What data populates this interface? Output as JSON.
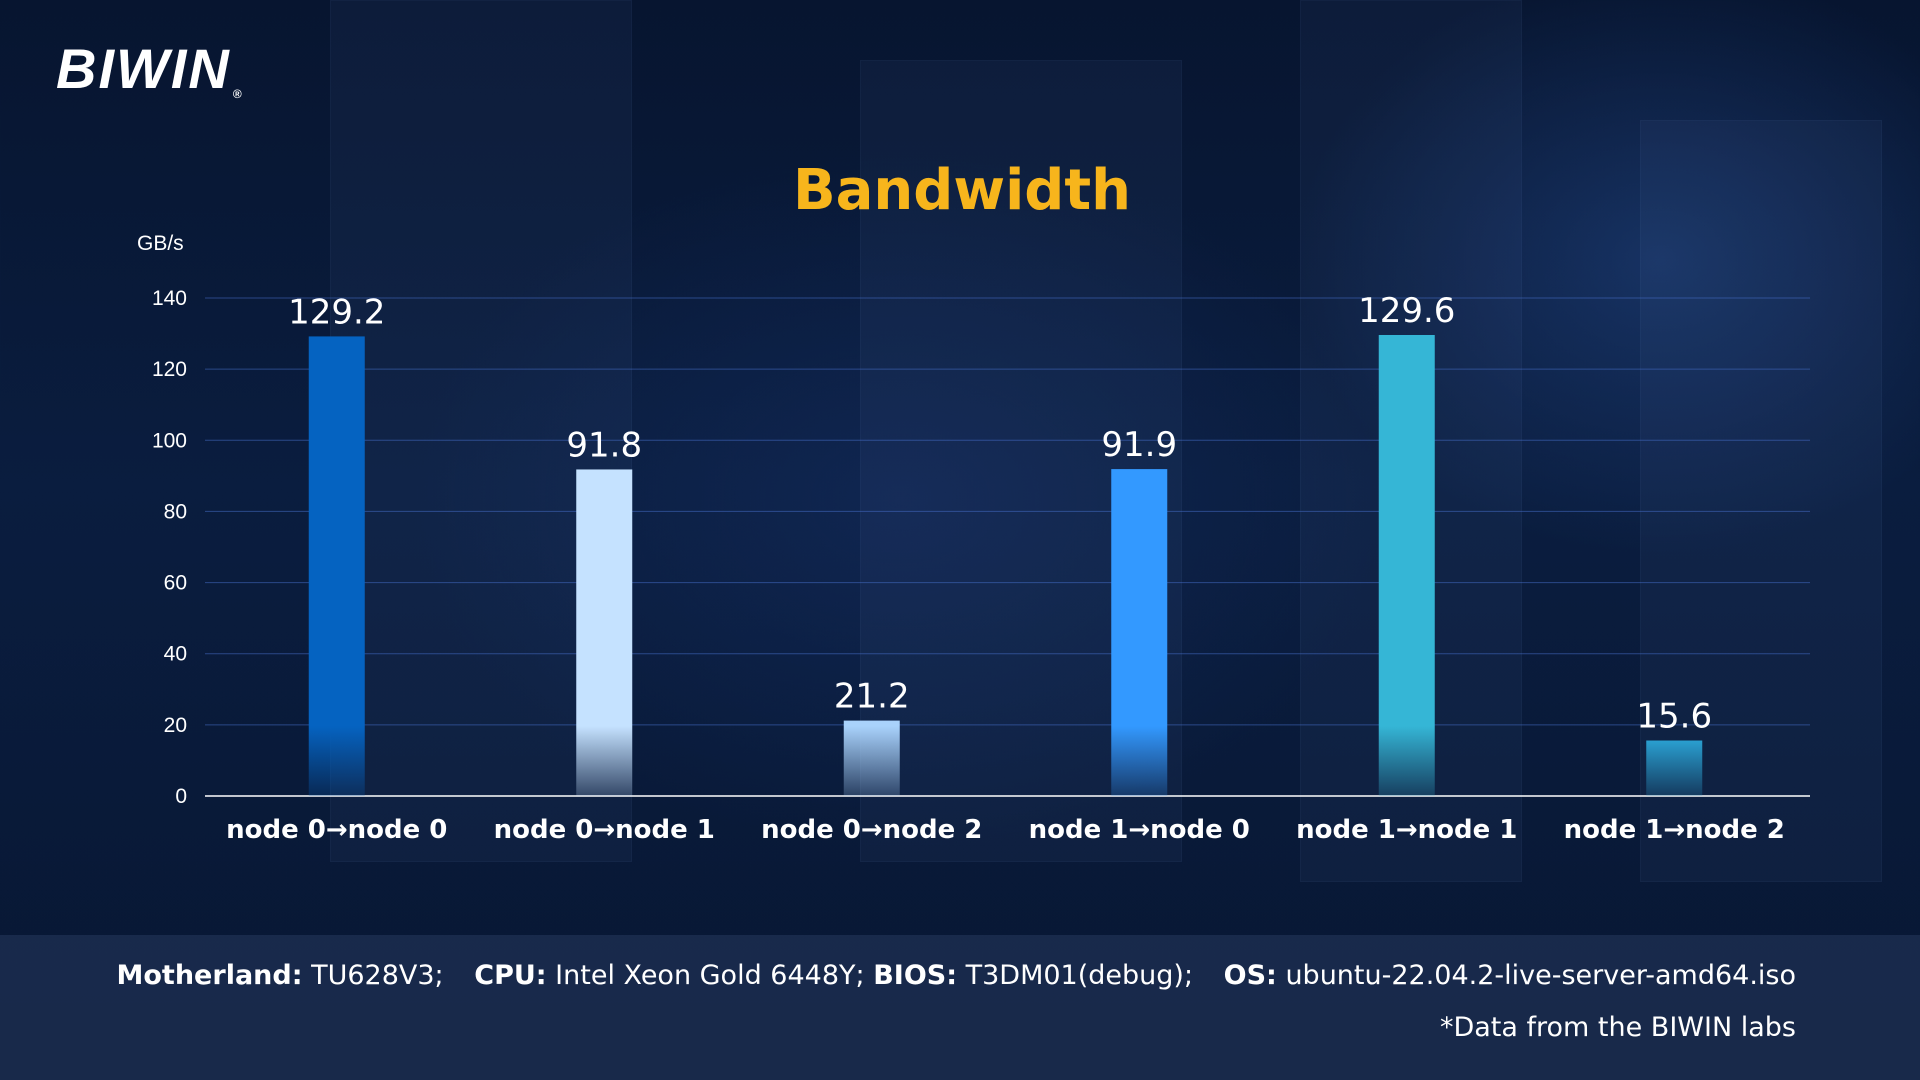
{
  "brand": {
    "name": "BIWIN",
    "registered": "®"
  },
  "chart_data": {
    "type": "bar",
    "title": "Bandwidth",
    "ylabel": "GB/s",
    "xlabel": "",
    "ylim": [
      0,
      140
    ],
    "yticks": [
      0,
      20,
      40,
      60,
      80,
      100,
      120,
      140
    ],
    "grid": true,
    "categories": [
      "node 0→node 0",
      "node 0→node 1",
      "node 0→node 2",
      "node 1→node 0",
      "node 1→node 1",
      "node 1→node 2"
    ],
    "values": [
      129.2,
      91.8,
      21.2,
      91.9,
      129.6,
      15.6
    ],
    "value_labels": [
      "129.2",
      "91.8",
      "21.2",
      "91.9",
      "129.6",
      "15.6"
    ],
    "colors": [
      "#0563c1",
      "#c5e2ff",
      "#a9d2fb",
      "#3399ff",
      "#35b6d6",
      "#2a9fd0"
    ]
  },
  "footer": {
    "specs": [
      {
        "key": "Motherland:",
        "value": "TU628V3;"
      },
      {
        "key": "CPU:",
        "value": "Intel Xeon Gold 6448Y;"
      },
      {
        "key": "BIOS:",
        "value": "T3DM01(debug);"
      },
      {
        "key": "OS:",
        "value": "ubuntu-22.04.2-live-server-amd64.iso"
      }
    ],
    "note": "*Data from the BIWIN labs"
  }
}
